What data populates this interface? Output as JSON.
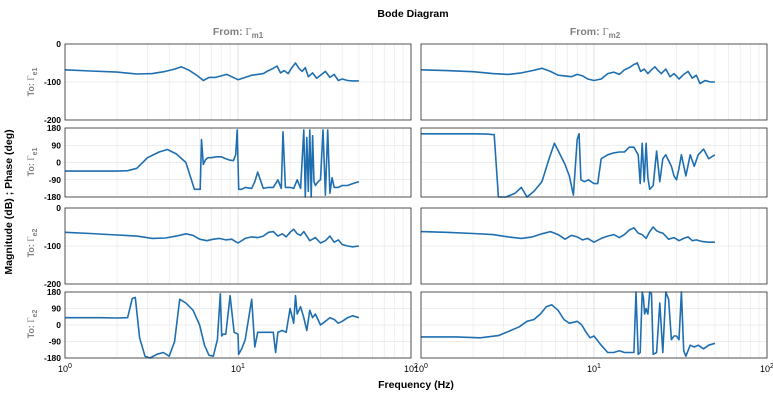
{
  "title": "Bode Diagram",
  "xlabel": "Frequency  (Hz)",
  "ylabel": "Magnitude (dB) ; Phase (deg)",
  "column_labels": [
    {
      "prefix": "From: ",
      "symbol": "Γ",
      "sub": "m1"
    },
    {
      "prefix": "From: ",
      "symbol": "Γ",
      "sub": "m2"
    }
  ],
  "row_labels": [
    {
      "prefix": "To: ",
      "symbol": "Γ",
      "sub": "e1"
    },
    {
      "prefix": "To: ",
      "symbol": "Γ",
      "sub": "e2"
    }
  ],
  "colors": {
    "line": "#1f6fb0",
    "axis": "#262626",
    "grid": "#d9d9d9",
    "col_label": "#7f7f7f"
  },
  "chart_data": {
    "type": "line",
    "title": "Bode Diagram",
    "xlabel": "Frequency  (Hz)",
    "ylabel": "Magnitude (dB) ; Phase (deg)",
    "xscale": "log",
    "xlim": [
      1,
      100
    ],
    "x_ticks": [
      {
        "value": 1,
        "base": "10",
        "exp": "0"
      },
      {
        "value": 10,
        "base": "10",
        "exp": "1"
      },
      {
        "value": 100,
        "base": "10",
        "exp": "2"
      }
    ],
    "grid": true,
    "magnitude_ylim": [
      -200,
      0
    ],
    "magnitude_yticks": [
      "0",
      "-100",
      "-200"
    ],
    "phase_ylim": [
      -180,
      180
    ],
    "phase_yticks": [
      "180",
      "90",
      "0",
      "-90",
      "-180"
    ],
    "panels": [
      {
        "from": "m1",
        "to": "e1",
        "kind": "magnitude",
        "x": [
          1,
          1.4,
          2,
          2.6,
          3.2,
          3.8,
          4.3,
          4.7,
          5.2,
          5.8,
          6.3,
          6.8,
          7.4,
          8,
          8.6,
          9.2,
          10,
          11,
          12,
          13,
          14,
          15,
          16,
          16.8,
          17.6,
          18.5,
          19.5,
          20.5,
          21.5,
          22.5,
          23.5,
          24.5,
          25.5,
          27,
          28.5,
          30,
          32,
          34,
          36,
          38,
          40,
          43,
          46,
          50
        ],
        "y": [
          -68,
          -71,
          -74,
          -79,
          -78,
          -72,
          -66,
          -60,
          -69,
          -83,
          -96,
          -88,
          -88,
          -84,
          -80,
          -86,
          -94,
          -88,
          -82,
          -80,
          -78,
          -70,
          -64,
          -58,
          -76,
          -70,
          -78,
          -62,
          -50,
          -64,
          -72,
          -62,
          -86,
          -76,
          -90,
          -82,
          -72,
          -88,
          -80,
          -96,
          -92,
          -96,
          -97,
          -97
        ]
      },
      {
        "from": "m1",
        "to": "e1",
        "kind": "phase",
        "x": [
          1,
          1.5,
          2,
          2.3,
          2.6,
          3,
          3.5,
          3.9,
          4.4,
          5,
          5.6,
          6.05,
          6.15,
          6.3,
          6.5,
          6.7,
          7,
          7.5,
          8,
          8.5,
          9,
          9.4,
          9.7,
          9.9,
          10.1,
          10.5,
          11,
          12,
          12.5,
          13,
          14,
          15,
          16,
          17,
          17.8,
          18.2,
          18.8,
          20,
          21,
          22,
          23,
          24,
          24.5,
          25,
          25.5,
          26,
          26.5,
          27,
          27.5,
          28,
          29,
          30,
          31,
          32,
          33,
          34,
          35,
          36,
          38,
          40,
          43,
          46,
          50
        ],
        "y": [
          -45,
          -45,
          -45,
          -43,
          -30,
          25,
          55,
          68,
          45,
          0,
          -140,
          -140,
          120,
          -10,
          15,
          25,
          25,
          30,
          30,
          20,
          12,
          10,
          40,
          170,
          -140,
          -140,
          -130,
          -135,
          -100,
          -50,
          -135,
          -130,
          -130,
          -90,
          -135,
          160,
          -130,
          -130,
          -135,
          -90,
          -135,
          170,
          -180,
          130,
          -150,
          170,
          -180,
          140,
          -100,
          -120,
          -100,
          -90,
          170,
          -170,
          170,
          -160,
          -80,
          -130,
          -130,
          -120,
          -120,
          -110,
          -100
        ]
      },
      {
        "from": "m1",
        "to": "e2",
        "kind": "magnitude",
        "x": [
          1,
          1.4,
          2,
          2.6,
          3.2,
          3.8,
          4.4,
          5,
          5.5,
          6,
          6.6,
          7.2,
          7.8,
          8.5,
          9.2,
          10,
          11,
          12,
          13,
          14,
          15,
          16,
          17,
          18,
          19,
          20,
          21,
          22,
          23,
          24,
          26,
          28,
          30,
          32,
          34,
          36,
          38,
          40,
          43,
          46,
          50
        ],
        "y": [
          -64,
          -67,
          -71,
          -74,
          -80,
          -79,
          -74,
          -68,
          -72,
          -82,
          -86,
          -82,
          -80,
          -84,
          -82,
          -92,
          -80,
          -76,
          -78,
          -74,
          -64,
          -62,
          -74,
          -68,
          -76,
          -64,
          -56,
          -68,
          -72,
          -62,
          -86,
          -78,
          -92,
          -86,
          -74,
          -90,
          -84,
          -96,
          -100,
          -102,
          -100
        ]
      },
      {
        "from": "m1",
        "to": "e2",
        "kind": "phase",
        "x": [
          1,
          1.6,
          2,
          2.3,
          2.45,
          2.55,
          2.7,
          2.9,
          3.1,
          3.4,
          3.7,
          4,
          4.3,
          4.6,
          5,
          5.5,
          6,
          6.4,
          6.8,
          7.2,
          7.6,
          7.9,
          8.05,
          8.2,
          8.5,
          9,
          9.5,
          10,
          10.1,
          10.5,
          11,
          12,
          12.5,
          13,
          14,
          15,
          16,
          16.5,
          17,
          18,
          19,
          20,
          21,
          21.5,
          22,
          23,
          24,
          25,
          26,
          27,
          28,
          30,
          32,
          34,
          36,
          38,
          40,
          43,
          46,
          50
        ],
        "y": [
          40,
          40,
          38,
          40,
          145,
          150,
          -70,
          -170,
          -180,
          -160,
          -150,
          -170,
          -90,
          140,
          120,
          80,
          0,
          -110,
          -165,
          -170,
          -80,
          170,
          -60,
          -50,
          -50,
          160,
          -40,
          -50,
          -160,
          -130,
          -80,
          140,
          -120,
          -40,
          -40,
          -40,
          -40,
          -150,
          -40,
          -30,
          -40,
          90,
          10,
          160,
          60,
          100,
          40,
          -30,
          80,
          40,
          60,
          0,
          20,
          40,
          30,
          10,
          20,
          40,
          50,
          40
        ]
      },
      {
        "from": "m2",
        "to": "e1",
        "kind": "magnitude",
        "x": [
          1,
          1.4,
          2,
          2.6,
          3.2,
          3.8,
          4.4,
          5,
          5.6,
          6.2,
          6.8,
          7.4,
          8,
          8.6,
          9.2,
          10,
          11,
          12,
          13,
          14,
          15,
          16,
          17,
          17.8,
          18.6,
          19.5,
          20.5,
          21.5,
          22.5,
          23.5,
          24.5,
          26,
          27.5,
          29,
          31,
          33,
          35,
          37,
          39,
          41,
          44,
          47,
          50
        ],
        "y": [
          -68,
          -70,
          -73,
          -78,
          -80,
          -76,
          -70,
          -64,
          -72,
          -82,
          -84,
          -86,
          -80,
          -84,
          -92,
          -96,
          -92,
          -78,
          -74,
          -80,
          -68,
          -62,
          -54,
          -50,
          -72,
          -66,
          -78,
          -68,
          -60,
          -70,
          -78,
          -66,
          -86,
          -78,
          -92,
          -80,
          -72,
          -90,
          -82,
          -104,
          -96,
          -100,
          -100
        ]
      },
      {
        "from": "m2",
        "to": "e1",
        "kind": "phase",
        "x": [
          1,
          1.5,
          2,
          2.4,
          2.65,
          2.8,
          3.1,
          3.5,
          3.8,
          4.1,
          4.5,
          5,
          5.5,
          5.9,
          6.3,
          6.8,
          7.2,
          7.6,
          8,
          8.2,
          8.4,
          8.8,
          9.3,
          10,
          10.5,
          11,
          12,
          13,
          14,
          15,
          16,
          17,
          18,
          18.5,
          19,
          19.5,
          20,
          20.5,
          21,
          22,
          23,
          24,
          25,
          26,
          27,
          28,
          29,
          30,
          31,
          32,
          34,
          36,
          38,
          40,
          43,
          46,
          50
        ],
        "y": [
          150,
          150,
          150,
          148,
          145,
          -180,
          -180,
          -160,
          -130,
          -180,
          -150,
          -100,
          20,
          100,
          50,
          -10,
          -70,
          -170,
          120,
          150,
          -90,
          -100,
          -90,
          -110,
          -110,
          20,
          40,
          50,
          55,
          55,
          80,
          80,
          40,
          -110,
          100,
          -100,
          100,
          -80,
          -140,
          -120,
          60,
          -100,
          20,
          40,
          10,
          -20,
          -70,
          -90,
          -30,
          40,
          -70,
          40,
          -20,
          40,
          70,
          20,
          40
        ]
      },
      {
        "from": "m2",
        "to": "e2",
        "kind": "magnitude",
        "x": [
          1,
          1.4,
          2,
          2.6,
          3.2,
          3.8,
          4.4,
          5,
          5.6,
          6.2,
          6.8,
          7.4,
          8,
          8.6,
          9.2,
          10,
          11,
          12,
          13,
          14,
          15,
          16,
          17,
          18,
          19,
          20,
          21,
          22,
          23,
          24,
          25,
          27,
          29,
          31,
          33,
          35,
          37,
          39,
          42,
          46,
          50
        ],
        "y": [
          -62,
          -64,
          -67,
          -70,
          -76,
          -80,
          -76,
          -68,
          -62,
          -70,
          -82,
          -72,
          -76,
          -84,
          -80,
          -90,
          -80,
          -74,
          -70,
          -78,
          -70,
          -58,
          -52,
          -66,
          -70,
          -80,
          -62,
          -50,
          -60,
          -64,
          -66,
          -82,
          -78,
          -86,
          -80,
          -76,
          -86,
          -84,
          -88,
          -90,
          -90
        ]
      },
      {
        "from": "m2",
        "to": "e2",
        "kind": "phase",
        "x": [
          1,
          1.6,
          2.2,
          2.8,
          3.3,
          3.7,
          4.1,
          4.5,
          4.9,
          5.3,
          5.7,
          6.2,
          6.7,
          7.2,
          7.6,
          8,
          8.5,
          9,
          9.5,
          10,
          11,
          12,
          13,
          14,
          15,
          16,
          17,
          17.5,
          18,
          18.5,
          19,
          19.3,
          19.6,
          20,
          20.5,
          21,
          21.5,
          22,
          23,
          24,
          25,
          26,
          27,
          28,
          29,
          30,
          31,
          32,
          33,
          34,
          36,
          38,
          40,
          43,
          46,
          50
        ],
        "y": [
          -65,
          -65,
          -70,
          -58,
          -30,
          -10,
          20,
          30,
          60,
          100,
          110,
          80,
          30,
          10,
          15,
          20,
          0,
          -40,
          -70,
          -60,
          -110,
          -150,
          -150,
          -140,
          -150,
          -150,
          -150,
          180,
          -160,
          -150,
          180,
          150,
          60,
          90,
          60,
          180,
          170,
          -160,
          -150,
          120,
          -150,
          180,
          140,
          -80,
          -60,
          -60,
          -80,
          180,
          -140,
          -170,
          -110,
          -120,
          -110,
          -130,
          -110,
          -100
        ]
      }
    ]
  }
}
